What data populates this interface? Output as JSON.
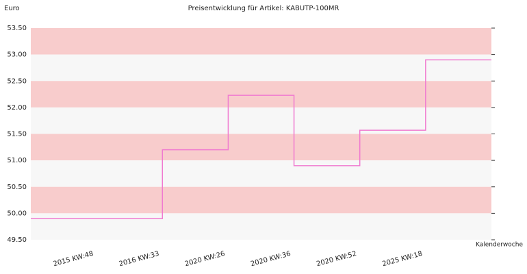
{
  "chart_data": {
    "type": "step",
    "title": "Preisentwicklung für Artikel: KABUTP-100MR",
    "y_label": "Euro",
    "x_label": "Kalenderwoche",
    "categories": [
      "2015 KW:48",
      "2016 KW:33",
      "2020 KW:26",
      "2020 KW:36",
      "2020 KW:52",
      "2025 KW:18"
    ],
    "values": [
      49.9,
      51.2,
      52.23,
      50.9,
      51.57,
      52.9
    ],
    "color": "#f07ad0",
    "band_colors": [
      "#f8cccc",
      "#f7f7f7"
    ],
    "ylim": [
      49.5,
      53.5
    ],
    "yticks": [
      {
        "value": 49.5,
        "label": "49.50"
      },
      {
        "value": 50,
        "label": "50.00"
      },
      {
        "value": 50.5,
        "label": "50.50"
      },
      {
        "value": 51,
        "label": "51.00"
      },
      {
        "value": 51.5,
        "label": "51.50"
      },
      {
        "value": 52,
        "label": "52.00"
      },
      {
        "value": 52.5,
        "label": "52.50"
      },
      {
        "value": 53,
        "label": "53.00"
      },
      {
        "value": 53.5,
        "label": "53.50"
      }
    ]
  }
}
